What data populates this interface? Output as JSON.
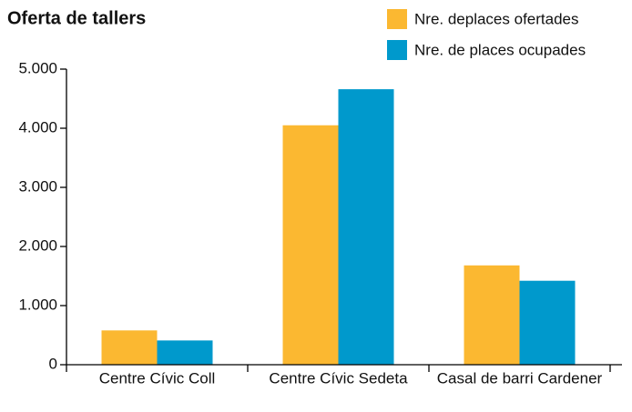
{
  "chart_data": {
    "type": "bar",
    "title": "Oferta de tallers",
    "categories": [
      "Centre Cívic Coll",
      "Centre Cívic Sedeta",
      "Casal de barri Cardener"
    ],
    "series": [
      {
        "name": "Nre. deplaces ofertades",
        "color": "#fbb831",
        "values": [
          580,
          4050,
          1680
        ]
      },
      {
        "name": "Nre. de places ocupades",
        "color": "#0099cc",
        "values": [
          410,
          4660,
          1420
        ]
      }
    ],
    "ylim": [
      0,
      5000
    ],
    "yticks": [
      {
        "value": 0,
        "label": "0"
      },
      {
        "value": 1000,
        "label": "1.000"
      },
      {
        "value": 2000,
        "label": "2.000"
      },
      {
        "value": 3000,
        "label": "3.000"
      },
      {
        "value": 4000,
        "label": "4.000"
      },
      {
        "value": 5000,
        "label": "5.000"
      }
    ],
    "grid": false
  }
}
